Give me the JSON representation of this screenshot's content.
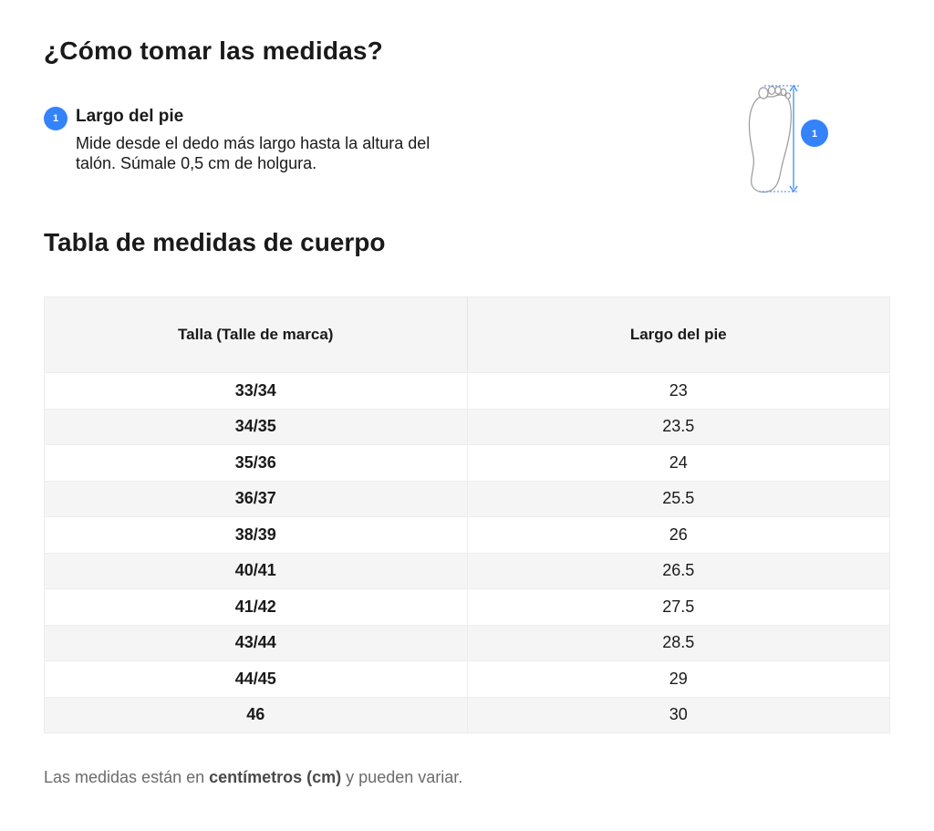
{
  "how_to_measure": {
    "title": "¿Cómo tomar las medidas?",
    "steps": [
      {
        "number": "1",
        "title": "Largo del pie",
        "description": "Mide desde el dedo más largo hasta la altura del talón. Súmale 0,5 cm de holgura."
      }
    ],
    "illustration": {
      "icon": "foot-measure-icon",
      "badge": "1"
    }
  },
  "size_table": {
    "title": "Tabla de medidas de cuerpo",
    "columns": [
      "Talla (Talle de marca)",
      "Largo del pie"
    ],
    "rows": [
      [
        "33/34",
        "23"
      ],
      [
        "34/35",
        "23.5"
      ],
      [
        "35/36",
        "24"
      ],
      [
        "36/37",
        "25.5"
      ],
      [
        "38/39",
        "26"
      ],
      [
        "40/41",
        "26.5"
      ],
      [
        "41/42",
        "27.5"
      ],
      [
        "43/44",
        "28.5"
      ],
      [
        "44/45",
        "29"
      ],
      [
        "46",
        "30"
      ]
    ]
  },
  "footnote": {
    "prefix": "Las medidas están en ",
    "unit": "centímetros (cm)",
    "suffix": " y pueden variar."
  },
  "colors": {
    "accent": "#3483fa",
    "text": "#1a1a1a",
    "muted_text": "#6b6b6b",
    "header_bg": "#f5f5f5",
    "stripe_bg": "#f5f5f5"
  }
}
